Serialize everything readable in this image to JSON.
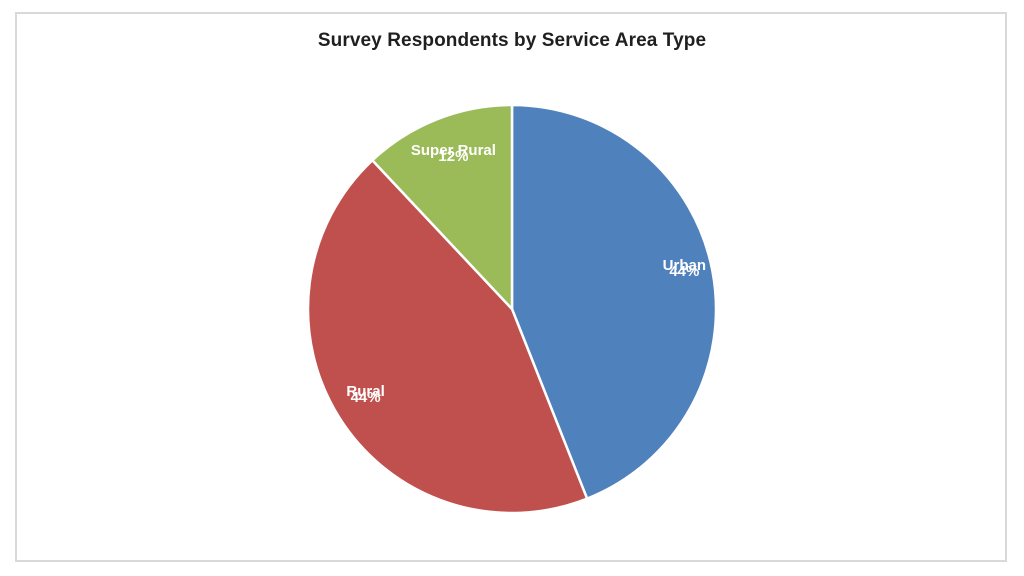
{
  "chart_data": {
    "type": "pie",
    "title": "Survey Respondents by Service Area Type",
    "slices": [
      {
        "label": "Urban",
        "value": 44,
        "pct_label": "44%",
        "color": "#4F81BD",
        "label_radius_frac": 0.86
      },
      {
        "label": "Rural",
        "value": 44,
        "pct_label": "44%",
        "color": "#C0504D",
        "label_radius_frac": 0.85
      },
      {
        "label": "Super Rural",
        "value": 12,
        "pct_label": "12%",
        "color": "#9BBB59",
        "label_radius_frac": 0.78
      }
    ],
    "start_angle_deg": 0,
    "direction": "clockwise",
    "legend": "none",
    "data_labels": "category name and percentage inside slices",
    "label_color": "#FFFFFF",
    "slice_border_color": "#FFFFFF",
    "slice_border_width": 2.5,
    "background": "#FFFFFF",
    "frame_border_color": "#D9D9D9"
  }
}
